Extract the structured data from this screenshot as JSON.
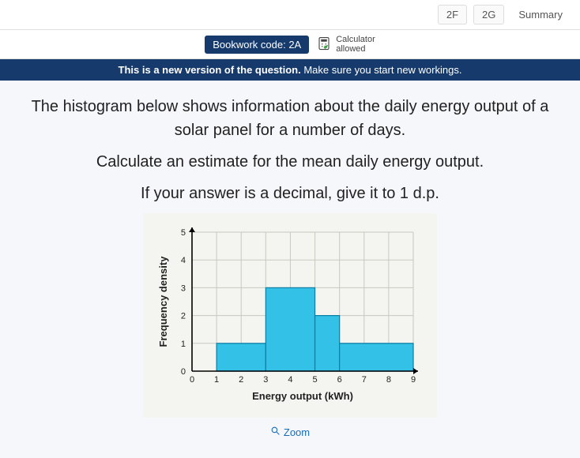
{
  "nav": {
    "tab2f": "2F",
    "tab2g": "2G",
    "summary": "Summary"
  },
  "bookwork": {
    "label": "Bookwork code: 2A"
  },
  "calculator": {
    "line1": "Calculator",
    "line2": "allowed"
  },
  "banner": {
    "strong": "This is a new version of the question.",
    "rest": " Make sure you start new workings."
  },
  "question": {
    "p1": "The histogram below shows information about the daily energy output of a solar panel for a number of days.",
    "p2": "Calculate an estimate for the mean daily energy output.",
    "p3": "If your answer is a decimal, give it to 1 d.p."
  },
  "zoom": {
    "label": "Zoom"
  },
  "chart": {
    "type": "histogram",
    "xlabel": "Energy output (kWh)",
    "ylabel": "Frequency density",
    "xlim": [
      0,
      9
    ],
    "ylim": [
      0,
      5
    ],
    "xtick_step": 1,
    "ytick_step": 1,
    "xticks": [
      0,
      1,
      2,
      3,
      4,
      5,
      6,
      7,
      8,
      9
    ],
    "yticks": [
      0,
      1,
      2,
      3,
      4,
      5
    ],
    "background_color": "#f4f4f0",
    "grid_color": "#c9c9c0",
    "axis_color": "#000000",
    "bar_fill": "#33c1e8",
    "bar_stroke": "#0a7fa3",
    "label_fontsize": 13,
    "tick_fontsize": 11,
    "bars": [
      {
        "x0": 1,
        "x1": 3,
        "density": 1
      },
      {
        "x0": 3,
        "x1": 5,
        "density": 3
      },
      {
        "x0": 5,
        "x1": 6,
        "density": 2
      },
      {
        "x0": 6,
        "x1": 9,
        "density": 1
      }
    ]
  }
}
